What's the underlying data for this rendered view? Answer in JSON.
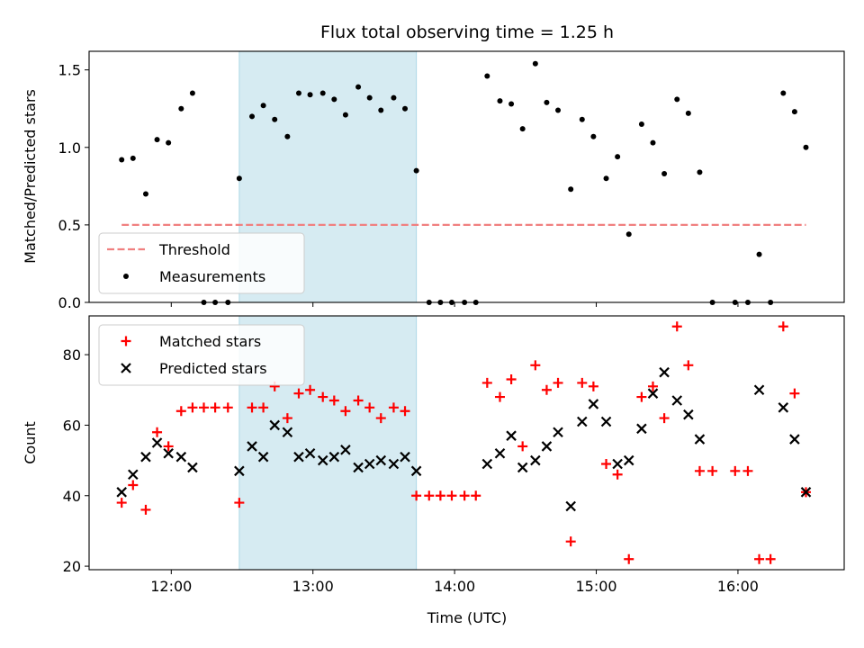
{
  "chart_data": {
    "type": "scatter",
    "title": "Flux total observing time = 1.25 h",
    "xlabel": "Time (UTC)",
    "x_unit": "hours UTC",
    "xlim": [
      11.42,
      16.75
    ],
    "x_ticks": [
      {
        "value": 12,
        "label": "12:00"
      },
      {
        "value": 13,
        "label": "13:00"
      },
      {
        "value": 14,
        "label": "14:00"
      },
      {
        "value": 15,
        "label": "15:00"
      },
      {
        "value": 16,
        "label": "16:00"
      }
    ],
    "highlight_span": {
      "x0": 12.48,
      "x1": 13.73,
      "color": "#add8e6"
    },
    "panels": [
      {
        "id": "ratio",
        "ylabel": "Matched/Predicted stars",
        "ylim": [
          0,
          1.62
        ],
        "y_ticks": [
          {
            "value": 0.0,
            "label": "0.0"
          },
          {
            "value": 0.5,
            "label": "0.5"
          },
          {
            "value": 1.0,
            "label": "1.0"
          },
          {
            "value": 1.5,
            "label": "1.5"
          }
        ],
        "threshold": {
          "name": "Threshold",
          "value": 0.5,
          "x0": 11.65,
          "x1": 16.48,
          "color": "#f08080"
        },
        "legend_position": "lower left",
        "legend": [
          "Threshold",
          "Measurements"
        ],
        "series": [
          {
            "name": "Measurements",
            "marker": "dot",
            "color": "#000000",
            "points": [
              [
                11.65,
                0.92
              ],
              [
                11.73,
                0.93
              ],
              [
                11.82,
                0.7
              ],
              [
                11.9,
                1.05
              ],
              [
                11.98,
                1.03
              ],
              [
                12.07,
                1.25
              ],
              [
                12.15,
                1.35
              ],
              [
                12.23,
                0
              ],
              [
                12.31,
                0
              ],
              [
                12.4,
                0
              ],
              [
                12.48,
                0.8
              ],
              [
                12.57,
                1.2
              ],
              [
                12.65,
                1.27
              ],
              [
                12.73,
                1.18
              ],
              [
                12.82,
                1.07
              ],
              [
                12.9,
                1.35
              ],
              [
                12.98,
                1.34
              ],
              [
                13.07,
                1.35
              ],
              [
                13.15,
                1.31
              ],
              [
                13.23,
                1.21
              ],
              [
                13.32,
                1.39
              ],
              [
                13.4,
                1.32
              ],
              [
                13.48,
                1.24
              ],
              [
                13.57,
                1.32
              ],
              [
                13.65,
                1.25
              ],
              [
                13.73,
                0.85
              ],
              [
                13.82,
                0
              ],
              [
                13.9,
                0
              ],
              [
                13.98,
                0
              ],
              [
                14.07,
                0
              ],
              [
                14.15,
                0
              ],
              [
                14.23,
                1.46
              ],
              [
                14.32,
                1.3
              ],
              [
                14.4,
                1.28
              ],
              [
                14.48,
                1.12
              ],
              [
                14.57,
                1.54
              ],
              [
                14.65,
                1.29
              ],
              [
                14.73,
                1.24
              ],
              [
                14.82,
                0.73
              ],
              [
                14.9,
                1.18
              ],
              [
                14.98,
                1.07
              ],
              [
                15.07,
                0.8
              ],
              [
                15.15,
                0.94
              ],
              [
                15.23,
                0.44
              ],
              [
                15.32,
                1.15
              ],
              [
                15.4,
                1.03
              ],
              [
                15.48,
                0.83
              ],
              [
                15.57,
                1.31
              ],
              [
                15.65,
                1.22
              ],
              [
                15.73,
                0.84
              ],
              [
                15.82,
                0
              ],
              [
                15.98,
                0
              ],
              [
                16.07,
                0
              ],
              [
                16.15,
                0.31
              ],
              [
                16.23,
                0
              ],
              [
                16.32,
                1.35
              ],
              [
                16.4,
                1.23
              ],
              [
                16.48,
                1.0
              ]
            ]
          }
        ]
      },
      {
        "id": "counts",
        "ylabel": "Count",
        "ylim": [
          19,
          91
        ],
        "y_ticks": [
          {
            "value": 20,
            "label": "20"
          },
          {
            "value": 40,
            "label": "40"
          },
          {
            "value": 60,
            "label": "60"
          },
          {
            "value": 80,
            "label": "80"
          }
        ],
        "legend_position": "upper left",
        "legend": [
          "Matched stars",
          "Predicted stars"
        ],
        "series": [
          {
            "name": "Matched stars",
            "marker": "plus",
            "color": "#ff0000",
            "points": [
              [
                11.65,
                38
              ],
              [
                11.73,
                43
              ],
              [
                11.82,
                36
              ],
              [
                11.9,
                58
              ],
              [
                11.98,
                54
              ],
              [
                12.07,
                64
              ],
              [
                12.15,
                65
              ],
              [
                12.23,
                65
              ],
              [
                12.31,
                65
              ],
              [
                12.4,
                65
              ],
              [
                12.48,
                38
              ],
              [
                12.57,
                65
              ],
              [
                12.65,
                65
              ],
              [
                12.73,
                71
              ],
              [
                12.82,
                62
              ],
              [
                12.9,
                69
              ],
              [
                12.98,
                70
              ],
              [
                13.07,
                68
              ],
              [
                13.15,
                67
              ],
              [
                13.23,
                64
              ],
              [
                13.32,
                67
              ],
              [
                13.4,
                65
              ],
              [
                13.48,
                62
              ],
              [
                13.57,
                65
              ],
              [
                13.65,
                64
              ],
              [
                13.73,
                40
              ],
              [
                13.82,
                40
              ],
              [
                13.9,
                40
              ],
              [
                13.98,
                40
              ],
              [
                14.07,
                40
              ],
              [
                14.15,
                40
              ],
              [
                14.23,
                72
              ],
              [
                14.32,
                68
              ],
              [
                14.4,
                73
              ],
              [
                14.48,
                54
              ],
              [
                14.57,
                77
              ],
              [
                14.65,
                70
              ],
              [
                14.73,
                72
              ],
              [
                14.82,
                27
              ],
              [
                14.9,
                72
              ],
              [
                14.98,
                71
              ],
              [
                15.07,
                49
              ],
              [
                15.15,
                46
              ],
              [
                15.23,
                22
              ],
              [
                15.32,
                68
              ],
              [
                15.4,
                71
              ],
              [
                15.48,
                62
              ],
              [
                15.57,
                88
              ],
              [
                15.65,
                77
              ],
              [
                15.73,
                47
              ],
              [
                15.82,
                47
              ],
              [
                15.98,
                47
              ],
              [
                16.07,
                47
              ],
              [
                16.15,
                22
              ],
              [
                16.23,
                22
              ],
              [
                16.32,
                88
              ],
              [
                16.4,
                69
              ],
              [
                16.48,
                41
              ]
            ]
          },
          {
            "name": "Predicted stars",
            "marker": "x",
            "color": "#000000",
            "points": [
              [
                11.65,
                41
              ],
              [
                11.73,
                46
              ],
              [
                11.82,
                51
              ],
              [
                11.9,
                55
              ],
              [
                11.98,
                52
              ],
              [
                12.07,
                51
              ],
              [
                12.15,
                48
              ],
              [
                12.48,
                47
              ],
              [
                12.57,
                54
              ],
              [
                12.65,
                51
              ],
              [
                12.73,
                60
              ],
              [
                12.82,
                58
              ],
              [
                12.9,
                51
              ],
              [
                12.98,
                52
              ],
              [
                13.07,
                50
              ],
              [
                13.15,
                51
              ],
              [
                13.23,
                53
              ],
              [
                13.32,
                48
              ],
              [
                13.4,
                49
              ],
              [
                13.48,
                50
              ],
              [
                13.57,
                49
              ],
              [
                13.65,
                51
              ],
              [
                13.73,
                47
              ],
              [
                14.23,
                49
              ],
              [
                14.32,
                52
              ],
              [
                14.4,
                57
              ],
              [
                14.48,
                48
              ],
              [
                14.57,
                50
              ],
              [
                14.65,
                54
              ],
              [
                14.73,
                58
              ],
              [
                14.82,
                37
              ],
              [
                14.9,
                61
              ],
              [
                14.98,
                66
              ],
              [
                15.07,
                61
              ],
              [
                15.15,
                49
              ],
              [
                15.23,
                50
              ],
              [
                15.32,
                59
              ],
              [
                15.4,
                69
              ],
              [
                15.48,
                75
              ],
              [
                15.57,
                67
              ],
              [
                15.65,
                63
              ],
              [
                15.73,
                56
              ],
              [
                16.15,
                70
              ],
              [
                16.32,
                65
              ],
              [
                16.4,
                56
              ],
              [
                16.48,
                41
              ]
            ]
          }
        ]
      }
    ]
  }
}
